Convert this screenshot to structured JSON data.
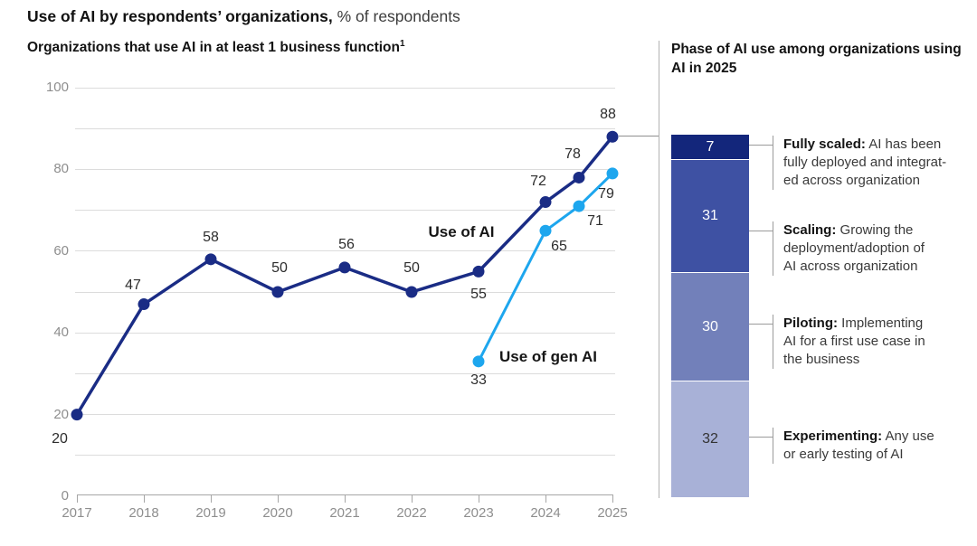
{
  "header": {
    "title_bold": "Use of AI by respondents’ organizations,",
    "title_regular": " % of respondents",
    "subtitle": "Organizations that use AI in at least 1 business function",
    "subtitle_footnote": "1"
  },
  "chart_data": {
    "type": "line",
    "title": "Organizations that use AI in at least 1 business function",
    "ylabel": "% of respondents",
    "ylim": [
      0,
      100
    ],
    "yticks": [
      0,
      20,
      40,
      60,
      80,
      100
    ],
    "gridlines_every": 10,
    "grid": true,
    "x_ticks": [
      "2017",
      "2018",
      "2019",
      "2020",
      "2021",
      "2022",
      "2023",
      "2024",
      "2025"
    ],
    "series": [
      {
        "name": "Use of AI",
        "color": "#1a2c85",
        "x": [
          2017,
          2018,
          2019,
          2020,
          2021,
          2022,
          2023,
          2024,
          2024.5,
          2025
        ],
        "values": [
          20,
          47,
          58,
          50,
          56,
          50,
          55,
          72,
          78,
          88
        ]
      },
      {
        "name": "Use of gen AI",
        "color": "#1da6ee",
        "x": [
          2023,
          2024,
          2024.5,
          2025
        ],
        "values": [
          33,
          65,
          71,
          79
        ]
      }
    ],
    "legend_position": "inline-annotations"
  },
  "right_panel": {
    "heading": "Phase of AI use among organizations using AI in 2025",
    "bar_total": 100,
    "phases": [
      {
        "value": 7,
        "color": "#13267b",
        "text_color": "#ffffff",
        "bold_prefix": "Fully scaled:",
        "label_lines": [
          "Fully scaled: AI has been",
          "fully deployed and integrat-",
          "ed across organization"
        ]
      },
      {
        "value": 31,
        "color": "#3e51a3",
        "text_color": "#ffffff",
        "bold_prefix": "Scaling:",
        "label_lines": [
          "Scaling: Growing the",
          "deployment/adoption of",
          "AI across organization"
        ]
      },
      {
        "value": 30,
        "color": "#7280ba",
        "text_color": "#ffffff",
        "bold_prefix": "Piloting:",
        "label_lines": [
          "Piloting: Implementing",
          "AI for a first use case in",
          "the business"
        ]
      },
      {
        "value": 32,
        "color": "#a8b1d7",
        "text_color": "#333333",
        "bold_prefix": "Experimenting:",
        "label_lines": [
          "Experimenting: Any use",
          "or early testing of AI"
        ]
      }
    ]
  }
}
